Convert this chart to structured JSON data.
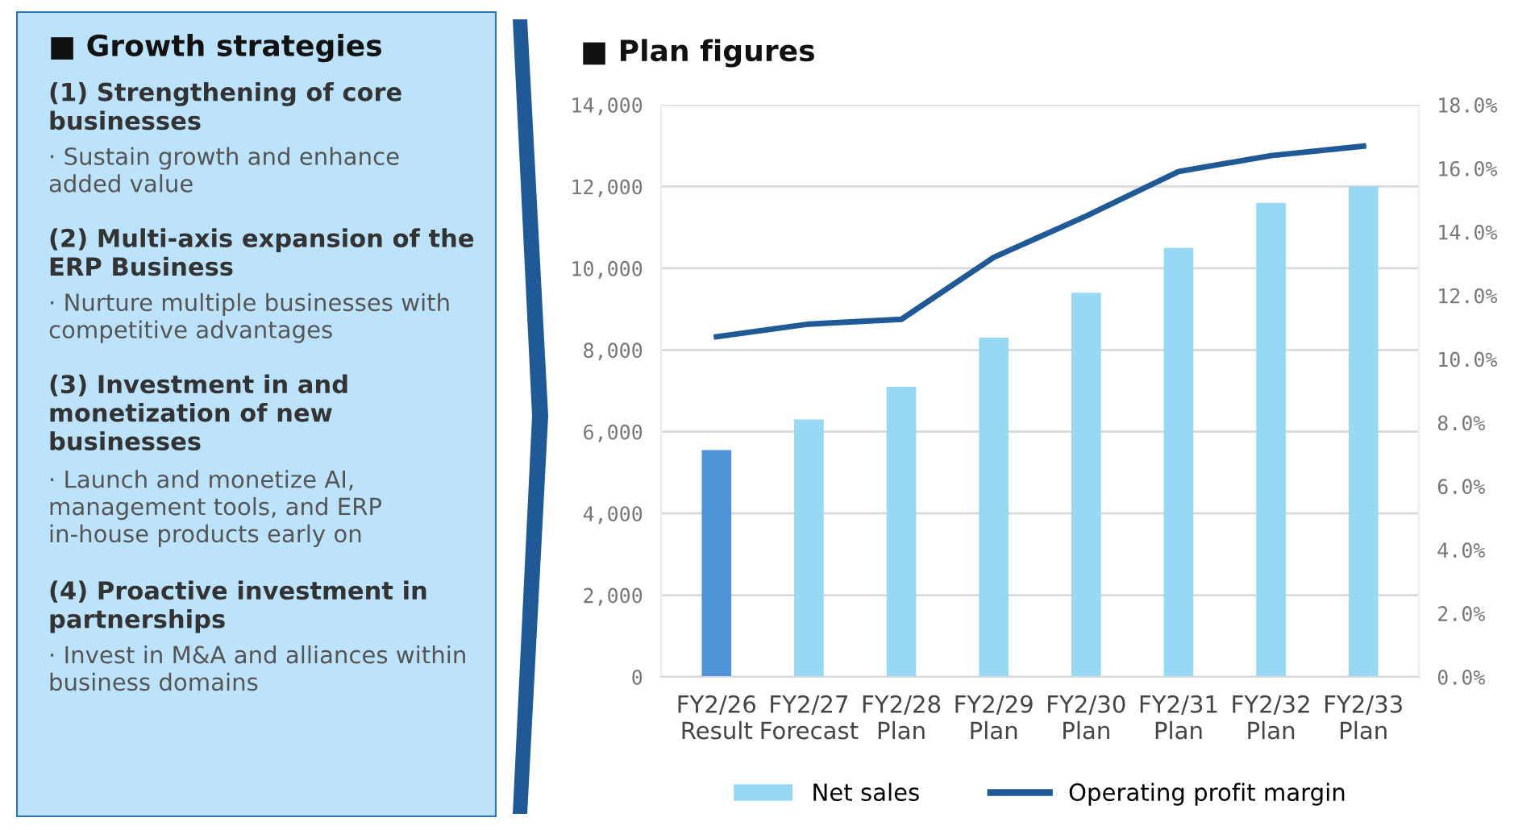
{
  "chart_data": [
    {
      "type": "other",
      "title": "■ Growth strategies",
      "annotations": [
        "(1) Strengthening of core businesses",
        "· Sustain growth and enhance added value",
        "(2) Multi-axis expansion of the ERP Business",
        "· Nurture multiple businesses with competitive advantages",
        "(3) Investment in and monetization of new businesses",
        "· Launch and monetize AI, management tools, and ERP in-house products early on",
        "(4) Proactive investment in partnerships",
        "· Invest in M&A and alliances within business domains"
      ]
    },
    {
      "type": "bar",
      "title": "■ Plan figures",
      "categories": [
        "FY2/26\nResult",
        "FY2/27\nForecast",
        "FY2/28\nPlan",
        "FY2/29\nPlan",
        "FY2/30\nPlan",
        "FY2/31\nPlan",
        "FY2/32\nPlan",
        "FY2/33\nPlan"
      ],
      "series": [
        {
          "name": "Net sales",
          "type": "bar",
          "color": "#97d9f5",
          "colors": [
            "#4f94d8",
            "#97d9f5",
            "#97d9f5",
            "#97d9f5",
            "#97d9f5",
            "#97d9f5",
            "#97d9f5",
            "#97d9f5"
          ],
          "values": [
            5550,
            6300,
            7100,
            8300,
            9400,
            10500,
            11600,
            12000
          ]
        },
        {
          "name": "Operating profit margin",
          "type": "line",
          "axis": "y2",
          "color": "#1f5a96",
          "values": [
            10.7,
            11.1,
            11.25,
            13.2,
            14.5,
            15.9,
            16.4,
            16.7
          ]
        }
      ],
      "ylim": [
        0,
        14000
      ],
      "yticks": [
        {
          "value": 0,
          "label": "0"
        },
        {
          "value": 2000,
          "label": "2,000"
        },
        {
          "value": 4000,
          "label": "4,000"
        },
        {
          "value": 6000,
          "label": "6,000"
        },
        {
          "value": 8000,
          "label": "8,000"
        },
        {
          "value": 10000,
          "label": "10,000"
        },
        {
          "value": 12000,
          "label": "12,000"
        },
        {
          "value": 14000,
          "label": "14,000"
        }
      ],
      "y2lim": [
        0,
        18
      ],
      "y2ticks": [
        {
          "value": 0,
          "label": "0.0%"
        },
        {
          "value": 2,
          "label": "2.0%"
        },
        {
          "value": 4,
          "label": "4.0%"
        },
        {
          "value": 6,
          "label": "6.0%"
        },
        {
          "value": 8,
          "label": "8.0%"
        },
        {
          "value": 10,
          "label": "10.0%"
        },
        {
          "value": 12,
          "label": "12.0%"
        },
        {
          "value": 14,
          "label": "14.0%"
        },
        {
          "value": 16,
          "label": "16.0%"
        },
        {
          "value": 18,
          "label": "18.0%"
        }
      ],
      "grid": "y",
      "legend": "bottom",
      "marker": "none",
      "line_style": "solid"
    }
  ]
}
